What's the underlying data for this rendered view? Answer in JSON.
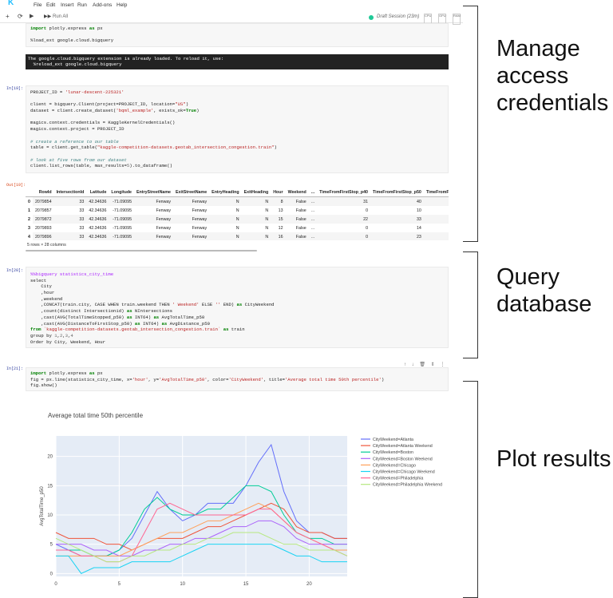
{
  "menu": {
    "logo": "K",
    "items": [
      "File",
      "Edit",
      "Insert",
      "Run",
      "Add-ons",
      "Help"
    ]
  },
  "toolbar": {
    "add": "+",
    "refresh": "⟳",
    "run": "▶",
    "run_all_label": "Run All",
    "session": "Draft Session (23m)",
    "mini": [
      "CPU",
      "GPU",
      "RAM"
    ]
  },
  "cell1": {
    "lines": [
      "import plotly.express as px",
      "",
      "%load_ext google.cloud.bigquery"
    ],
    "stderr": [
      "The google.cloud.bigquery extension is already loaded. To reload it, use:",
      "  %reload_ext google.cloud.bigquery"
    ]
  },
  "cell2": {
    "prompt_in": "In[19]:",
    "prompt_out": "Out[19]:",
    "lines": [
      "PROJECT_ID = 'lunar-descent-225321'",
      "",
      "client = bigquery.Client(project=PROJECT_ID, location=\"US\")",
      "dataset = client.create_dataset('bqml_example', exists_ok=True)",
      "",
      "magics.context.credentials = KaggleKernelCredentials()",
      "magics.context.project = PROJECT_ID",
      "",
      "# create a reference to our table",
      "table = client.get_table(\"kaggle-competition-datasets.geotab_intersection_congestion.train\")",
      "",
      "# look at five rows from our dataset",
      "client.list_rows(table, max_results=5).to_dataframe()"
    ],
    "table": {
      "columns": [
        "",
        "RowId",
        "IntersectionId",
        "Latitude",
        "Longitude",
        "EntryStreetName",
        "ExitStreetName",
        "EntryHeading",
        "ExitHeading",
        "Hour",
        "Weekend",
        "...",
        "TimeFromFirstStop_p40",
        "TimeFromFirstStop_p50",
        "TimeFromFirstSt"
      ],
      "rows": [
        [
          "0",
          "2079854",
          "33",
          "42.34636",
          "-71.09095",
          "Fenway",
          "Fenway",
          "N",
          "N",
          "8",
          "False",
          "...",
          "31",
          "40",
          ""
        ],
        [
          "1",
          "2079857",
          "33",
          "42.34636",
          "-71.09095",
          "Fenway",
          "Fenway",
          "N",
          "N",
          "13",
          "False",
          "...",
          "0",
          "10",
          ""
        ],
        [
          "2",
          "2079872",
          "33",
          "42.34636",
          "-71.09095",
          "Fenway",
          "Fenway",
          "N",
          "N",
          "15",
          "False",
          "...",
          "22",
          "33",
          ""
        ],
        [
          "3",
          "2079893",
          "33",
          "42.34636",
          "-71.09095",
          "Fenway",
          "Fenway",
          "N",
          "N",
          "12",
          "False",
          "...",
          "0",
          "14",
          ""
        ],
        [
          "4",
          "2079896",
          "33",
          "42.34636",
          "-71.09095",
          "Fenway",
          "Fenway",
          "N",
          "N",
          "16",
          "False",
          "...",
          "0",
          "23",
          ""
        ]
      ],
      "rowcount": "5 rows × 28 columns"
    }
  },
  "cell3": {
    "prompt_in": "In[20]:",
    "lines": [
      "%%bigquery statistics_city_time",
      "select",
      "    City",
      "    ,hour",
      "    ,weekend",
      "    ,CONCAT(train.city, CASE WHEN train.weekend THEN ' Weekend' ELSE '' END) as CityWeekend",
      "    ,count(distinct Intersectionid) as NIntersections",
      "    ,cast(AVG(TotalTimeStopped_p50) as INT64) as AvgTotalTime_p50",
      "    ,cast(AVG(DistanceToFirstStop_p50) as INT64) as AvgDistance_p50",
      "from `kaggle-competition-datasets.geotab_intersection_congestion.train` as train",
      "group by 1,2,3,4",
      "Order by City, Weekend, Hour"
    ]
  },
  "cell4": {
    "prompt_in": "In[21]:",
    "tools": [
      "↑",
      "↓",
      "🗑",
      "⇕",
      "⋮"
    ],
    "lines": [
      "import plotly.express as px",
      "fig = px.line(statistics_city_time, x='hour', y='AvgTotalTime_p50', color='CityWeekend', title='Average total time 50th percentile')",
      "fig.show()"
    ]
  },
  "annotations": {
    "a1": [
      "Manage",
      "access",
      "credentials"
    ],
    "a2": [
      "Query",
      "database"
    ],
    "a3": [
      "Plot results"
    ]
  },
  "chart_data": {
    "type": "line",
    "title": "Average total time 50th percentile",
    "xlabel": "",
    "ylabel": "AvgTotalTime_p50",
    "xlim": [
      0,
      23
    ],
    "ylim": [
      -0.5,
      23.5
    ],
    "xticks": [
      0,
      5,
      10,
      15,
      20
    ],
    "yticks": [
      0,
      5,
      10,
      15,
      20
    ],
    "grid": true,
    "legend_position": "right",
    "series": [
      {
        "name": "CityWeekend=Atlanta",
        "color": "#636efa",
        "values": [
          5,
          4,
          3,
          3,
          3,
          4,
          6,
          10,
          14,
          11,
          9,
          10,
          12,
          12,
          12,
          15,
          19,
          22,
          14,
          9,
          7,
          7,
          6,
          6
        ]
      },
      {
        "name": "CityWeekend=Atlanta Weekend",
        "color": "#ef553b",
        "values": [
          7,
          6,
          6,
          6,
          5,
          5,
          4,
          5,
          6,
          6,
          6,
          7,
          8,
          8,
          9,
          10,
          11,
          12,
          11,
          8,
          7,
          7,
          6,
          6
        ]
      },
      {
        "name": "CityWeekend=Boston",
        "color": "#00cc96",
        "values": [
          4,
          4,
          4,
          3,
          3,
          4,
          7,
          11,
          13,
          11,
          10,
          10,
          11,
          11,
          13,
          15,
          15,
          14,
          10,
          7,
          6,
          6,
          5,
          5
        ]
      },
      {
        "name": "CityWeekend=Boston Weekend",
        "color": "#ab63fa",
        "values": [
          5,
          5,
          5,
          4,
          4,
          3,
          3,
          4,
          4,
          5,
          5,
          6,
          6,
          7,
          8,
          8,
          9,
          9,
          8,
          6,
          5,
          5,
          5,
          5
        ]
      },
      {
        "name": "CityWeekend=Chicago",
        "color": "#ffa15a",
        "values": [
          3,
          3,
          3,
          3,
          3,
          3,
          4,
          5,
          6,
          7,
          7,
          8,
          9,
          9,
          10,
          11,
          12,
          11,
          9,
          7,
          6,
          5,
          4,
          4
        ]
      },
      {
        "name": "CityWeekend=Chicago Weekend",
        "color": "#19d3f3",
        "values": [
          3,
          3,
          0,
          1,
          1,
          1,
          2,
          2,
          2,
          2,
          3,
          4,
          5,
          5,
          5,
          5,
          5,
          5,
          4,
          3,
          3,
          2,
          2,
          2
        ]
      },
      {
        "name": "CityWeekend=Philadelphia",
        "color": "#ff6692",
        "values": [
          4,
          4,
          3,
          3,
          2,
          2,
          3,
          7,
          11,
          12,
          11,
          10,
          10,
          10,
          10,
          10,
          11,
          11,
          9,
          7,
          6,
          5,
          4,
          3
        ]
      },
      {
        "name": "CityWeekend=Philadelphia Weekend",
        "color": "#b6e880",
        "values": [
          6,
          5,
          4,
          3,
          2,
          2,
          3,
          3,
          4,
          4,
          5,
          5,
          6,
          6,
          7,
          7,
          7,
          6,
          5,
          5,
          4,
          4,
          4,
          3
        ]
      }
    ]
  }
}
